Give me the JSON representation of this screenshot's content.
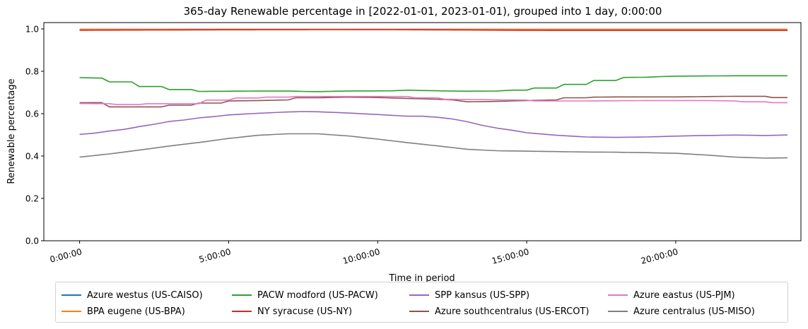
{
  "chart_data": {
    "type": "line",
    "title": "365-day Renewable percentage in [2022-01-01, 2023-01-01), grouped into 1 day, 0:00:00",
    "xlabel": "Time in period",
    "ylabel": "Renewable percentage",
    "xlim": [
      -1.2,
      24.2
    ],
    "ylim": [
      0,
      1.03
    ],
    "x_ticks": [
      {
        "value": 0,
        "label": "0:00:00"
      },
      {
        "value": 5,
        "label": "5:00:00"
      },
      {
        "value": 10,
        "label": "10:00:00"
      },
      {
        "value": 15,
        "label": "15:00:00"
      },
      {
        "value": 20,
        "label": "20:00:00"
      }
    ],
    "y_ticks": [
      {
        "value": 0.0,
        "label": "0.0"
      },
      {
        "value": 0.2,
        "label": "0.2"
      },
      {
        "value": 0.4,
        "label": "0.4"
      },
      {
        "value": 0.6,
        "label": "0.6"
      },
      {
        "value": 0.8,
        "label": "0.8"
      },
      {
        "value": 1.0,
        "label": "1.0"
      }
    ],
    "x_step_hours": 0.25,
    "grid": false,
    "legend_position": "bottom-center",
    "series": [
      {
        "name": "Azure westus (US-CAISO)",
        "color": "#1f77b4",
        "knots": [
          [
            0,
            0.998
          ],
          [
            24,
            0.998
          ]
        ]
      },
      {
        "name": "BPA eugene (US-BPA)",
        "color": "#ff7f0e",
        "knots": [
          [
            0,
            0.998
          ],
          [
            24,
            0.998
          ]
        ]
      },
      {
        "name": "PACW modford (US-PACW)",
        "color": "#2ca02c",
        "knots": [
          [
            0,
            0.77
          ],
          [
            0.75,
            0.768
          ],
          [
            1,
            0.75
          ],
          [
            1.75,
            0.75
          ],
          [
            2,
            0.728
          ],
          [
            2.75,
            0.728
          ],
          [
            3,
            0.714
          ],
          [
            3.75,
            0.714
          ],
          [
            4,
            0.705
          ],
          [
            6,
            0.707
          ],
          [
            7,
            0.707
          ],
          [
            7.5,
            0.705
          ],
          [
            8,
            0.704
          ],
          [
            9,
            0.707
          ],
          [
            10.5,
            0.708
          ],
          [
            11,
            0.711
          ],
          [
            12,
            0.708
          ],
          [
            13,
            0.706
          ],
          [
            14,
            0.707
          ],
          [
            14.5,
            0.711
          ],
          [
            15,
            0.711
          ],
          [
            15.25,
            0.721
          ],
          [
            16,
            0.721
          ],
          [
            16.25,
            0.738
          ],
          [
            17,
            0.738
          ],
          [
            17.25,
            0.757
          ],
          [
            18,
            0.757
          ],
          [
            18.25,
            0.771
          ],
          [
            19,
            0.772
          ],
          [
            19.5,
            0.775
          ],
          [
            20,
            0.777
          ],
          [
            22,
            0.779
          ],
          [
            24,
            0.779
          ]
        ]
      },
      {
        "name": "NY syracuse (US-NY)",
        "color": "#d62728",
        "knots": [
          [
            0,
            0.994
          ],
          [
            5,
            0.996
          ],
          [
            10,
            0.997
          ],
          [
            13,
            0.995
          ],
          [
            16,
            0.993
          ],
          [
            20,
            0.993
          ],
          [
            24,
            0.993
          ]
        ]
      },
      {
        "name": "SPP kansus (US-SPP)",
        "color": "#9467bd",
        "knots": [
          [
            0,
            0.502
          ],
          [
            0.5,
            0.508
          ],
          [
            1,
            0.518
          ],
          [
            1.5,
            0.526
          ],
          [
            2,
            0.539
          ],
          [
            2.5,
            0.55
          ],
          [
            3,
            0.563
          ],
          [
            3.5,
            0.57
          ],
          [
            4,
            0.58
          ],
          [
            4.5,
            0.586
          ],
          [
            5,
            0.594
          ],
          [
            6,
            0.602
          ],
          [
            7,
            0.608
          ],
          [
            7.5,
            0.61
          ],
          [
            8,
            0.609
          ],
          [
            9,
            0.603
          ],
          [
            10,
            0.596
          ],
          [
            11,
            0.588
          ],
          [
            11.5,
            0.588
          ],
          [
            12,
            0.583
          ],
          [
            12.5,
            0.575
          ],
          [
            13,
            0.562
          ],
          [
            13.5,
            0.545
          ],
          [
            14,
            0.532
          ],
          [
            14.5,
            0.522
          ],
          [
            15,
            0.51
          ],
          [
            16,
            0.498
          ],
          [
            17,
            0.49
          ],
          [
            18,
            0.488
          ],
          [
            19,
            0.49
          ],
          [
            20,
            0.494
          ],
          [
            21,
            0.497
          ],
          [
            22,
            0.499
          ],
          [
            23,
            0.497
          ],
          [
            24,
            0.5
          ]
        ]
      },
      {
        "name": "Azure southcentralus (US-ERCOT)",
        "color": "#8c564b",
        "knots": [
          [
            0,
            0.652
          ],
          [
            0.75,
            0.652
          ],
          [
            0.9,
            0.632
          ],
          [
            2,
            0.632
          ],
          [
            2.9,
            0.632
          ],
          [
            3,
            0.64
          ],
          [
            3.9,
            0.64
          ],
          [
            4,
            0.65
          ],
          [
            4.9,
            0.65
          ],
          [
            5,
            0.66
          ],
          [
            6,
            0.662
          ],
          [
            7,
            0.665
          ],
          [
            7.25,
            0.675
          ],
          [
            8,
            0.675
          ],
          [
            9,
            0.678
          ],
          [
            10,
            0.676
          ],
          [
            11,
            0.672
          ],
          [
            12,
            0.668
          ],
          [
            12.5,
            0.665
          ],
          [
            13,
            0.656
          ],
          [
            14,
            0.658
          ],
          [
            15,
            0.662
          ],
          [
            16,
            0.665
          ],
          [
            16.25,
            0.675
          ],
          [
            17,
            0.675
          ],
          [
            17.25,
            0.678
          ],
          [
            18,
            0.679
          ],
          [
            20,
            0.679
          ],
          [
            22,
            0.682
          ],
          [
            23,
            0.682
          ],
          [
            23.25,
            0.676
          ],
          [
            24,
            0.676
          ]
        ]
      },
      {
        "name": "Azure eastus (US-PJM)",
        "color": "#e377c2",
        "knots": [
          [
            0,
            0.648
          ],
          [
            1,
            0.647
          ],
          [
            1.25,
            0.643
          ],
          [
            2,
            0.643
          ],
          [
            2.25,
            0.647
          ],
          [
            4,
            0.647
          ],
          [
            4.25,
            0.664
          ],
          [
            5,
            0.664
          ],
          [
            5.25,
            0.674
          ],
          [
            6,
            0.674
          ],
          [
            6.25,
            0.678
          ],
          [
            7,
            0.678
          ],
          [
            7.25,
            0.681
          ],
          [
            11,
            0.681
          ],
          [
            11.25,
            0.675
          ],
          [
            12,
            0.675
          ],
          [
            12.25,
            0.668
          ],
          [
            15,
            0.664
          ],
          [
            15.25,
            0.66
          ],
          [
            17,
            0.66
          ],
          [
            19,
            0.662
          ],
          [
            21,
            0.662
          ],
          [
            22,
            0.66
          ],
          [
            22.25,
            0.656
          ],
          [
            23,
            0.656
          ],
          [
            23.25,
            0.652
          ],
          [
            24,
            0.652
          ]
        ]
      },
      {
        "name": "Azure centralus (US-MISO)",
        "color": "#7f7f7f",
        "knots": [
          [
            0,
            0.395
          ],
          [
            1,
            0.41
          ],
          [
            2,
            0.428
          ],
          [
            3,
            0.447
          ],
          [
            4,
            0.464
          ],
          [
            5,
            0.483
          ],
          [
            6,
            0.498
          ],
          [
            7,
            0.505
          ],
          [
            8,
            0.505
          ],
          [
            9,
            0.495
          ],
          [
            10,
            0.48
          ],
          [
            11,
            0.463
          ],
          [
            12,
            0.448
          ],
          [
            13,
            0.432
          ],
          [
            14,
            0.425
          ],
          [
            15,
            0.423
          ],
          [
            16,
            0.421
          ],
          [
            17,
            0.419
          ],
          [
            18,
            0.418
          ],
          [
            19,
            0.416
          ],
          [
            20,
            0.413
          ],
          [
            21,
            0.405
          ],
          [
            22,
            0.395
          ],
          [
            23,
            0.39
          ],
          [
            24,
            0.392
          ]
        ]
      }
    ]
  }
}
